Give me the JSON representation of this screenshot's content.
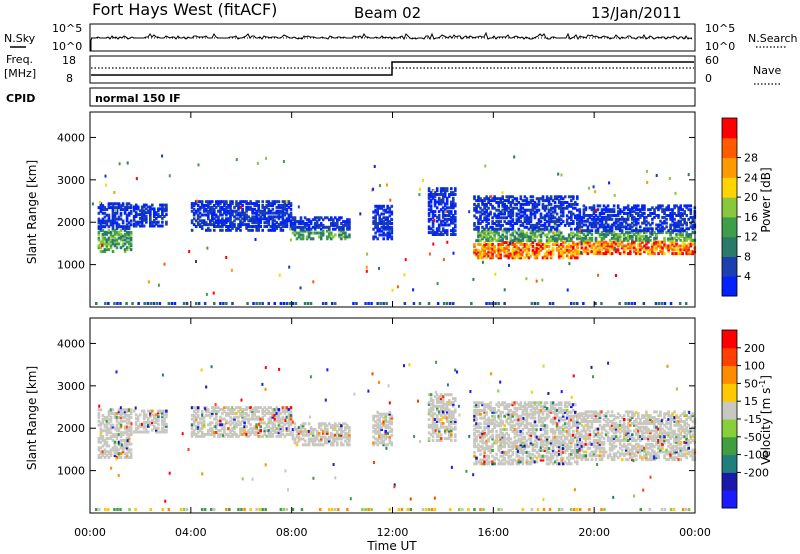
{
  "header": {
    "station": "Fort Hays West (fitACF)",
    "beam": "Beam 02",
    "date": "13/Jan/2011"
  },
  "top_panels": {
    "nsky_label": "N.Sky",
    "nsearch_label": "N.Search",
    "noise_ticks": [
      "10^5",
      "10^0"
    ],
    "freq_label": "Freq.",
    "freq_unit": "[MHz]",
    "freq_ticks": [
      "18",
      "8"
    ],
    "nave_ticks": [
      "60",
      "0"
    ],
    "nave_label": "Nave",
    "cpid_label": "CPID",
    "cpid_text": "normal 150 IF"
  },
  "chart_data": [
    {
      "type": "heatmap",
      "name": "power",
      "ylabel": "Slant Range [km]",
      "y_ticks": [
        1000,
        2000,
        3000,
        4000
      ],
      "ylim": [
        0,
        4600
      ],
      "xlabel": "Time UT",
      "x_ticks": [
        "00:00",
        "04:00",
        "08:00",
        "12:00",
        "16:00",
        "20:00",
        "00:00"
      ],
      "xlim_hours": [
        0,
        24
      ],
      "colorbar": {
        "label": "Power [dB]",
        "ticks": [
          "4",
          "8",
          "12",
          "16",
          "20",
          "24",
          "28"
        ],
        "colors": [
          "#0022ff",
          "#1a3fb0",
          "#2a7a6a",
          "#3f9e4a",
          "#88c83a",
          "#ffd400",
          "#ff9a00",
          "#ff5a00",
          "#ff0000"
        ]
      },
      "echo_regions": [
        {
          "t0": 0.3,
          "t1": 1.6,
          "r0": 1300,
          "r1": 2450,
          "level": "mid"
        },
        {
          "t0": 1.7,
          "t1": 3.0,
          "r0": 1900,
          "r1": 2400,
          "level": "low"
        },
        {
          "t0": 4.0,
          "t1": 8.0,
          "r0": 1800,
          "r1": 2500,
          "level": "low"
        },
        {
          "t0": 8.0,
          "t1": 10.3,
          "r0": 1600,
          "r1": 2100,
          "level": "mid"
        },
        {
          "t0": 11.2,
          "t1": 12.0,
          "r0": 1600,
          "r1": 2400,
          "level": "low"
        },
        {
          "t0": 13.4,
          "t1": 14.5,
          "r0": 1700,
          "r1": 2800,
          "level": "low"
        },
        {
          "t0": 15.2,
          "t1": 19.3,
          "r0": 1150,
          "r1": 2600,
          "level": "high"
        },
        {
          "t0": 19.3,
          "t1": 24.0,
          "r0": 1250,
          "r1": 2400,
          "level": "high"
        }
      ]
    },
    {
      "type": "heatmap",
      "name": "velocity",
      "ylabel": "Slant Range [km]",
      "y_ticks": [
        1000,
        2000,
        3000,
        4000
      ],
      "ylim": [
        0,
        4600
      ],
      "xlabel": "Time UT",
      "x_ticks": [
        "00:00",
        "04:00",
        "08:00",
        "12:00",
        "16:00",
        "20:00",
        "00:00"
      ],
      "xlim_hours": [
        0,
        24
      ],
      "colorbar": {
        "label": "Velocity [m s",
        "label_sup": "-1",
        "label_end": "]",
        "ticks": [
          "200",
          "100",
          "50",
          "15",
          "-15",
          "-50",
          "-100",
          "-200"
        ],
        "colors": [
          "#1a1aff",
          "#1a1aaa",
          "#1f7f7f",
          "#3f9e3f",
          "#88d03a",
          "#c8c8c0",
          "#ffc800",
          "#ff8c00",
          "#ff4000",
          "#ff0000"
        ]
      },
      "echo_regions": [
        {
          "t0": 0.3,
          "t1": 1.6,
          "r0": 1300,
          "r1": 2450,
          "level": "mid"
        },
        {
          "t0": 1.7,
          "t1": 3.0,
          "r0": 1900,
          "r1": 2400,
          "level": "low"
        },
        {
          "t0": 4.0,
          "t1": 8.0,
          "r0": 1800,
          "r1": 2500,
          "level": "low"
        },
        {
          "t0": 8.0,
          "t1": 10.3,
          "r0": 1600,
          "r1": 2100,
          "level": "mid"
        },
        {
          "t0": 11.2,
          "t1": 12.0,
          "r0": 1600,
          "r1": 2400,
          "level": "low"
        },
        {
          "t0": 13.4,
          "t1": 14.5,
          "r0": 1700,
          "r1": 2800,
          "level": "low"
        },
        {
          "t0": 15.2,
          "t1": 19.3,
          "r0": 1150,
          "r1": 2600,
          "level": "high"
        },
        {
          "t0": 19.3,
          "t1": 24.0,
          "r0": 1250,
          "r1": 2400,
          "level": "high"
        }
      ]
    }
  ]
}
